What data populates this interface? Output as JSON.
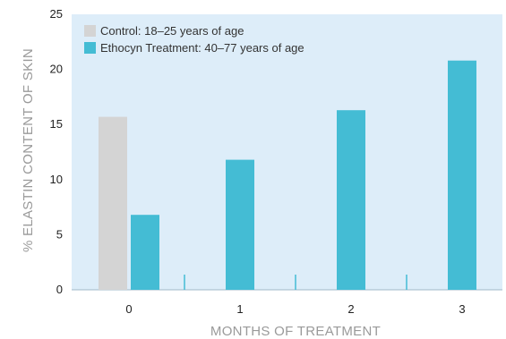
{
  "chart_data": {
    "type": "bar",
    "categories": [
      "0",
      "1",
      "2",
      "3"
    ],
    "series": [
      {
        "name": "Control: 18–25 years of age",
        "values": [
          15.7,
          null,
          null,
          null
        ],
        "color": "#d4d4d4"
      },
      {
        "name": "Ethocyn Treatment: 40–77 years of age",
        "values": [
          6.8,
          11.8,
          16.3,
          20.8
        ],
        "color": "#44bcd4"
      }
    ],
    "xlabel": "MONTHS OF TREATMENT",
    "ylabel": "% ELASTIN CONTENT OF SKIN",
    "ylim": [
      0,
      25
    ],
    "yticks": [
      "0",
      "5",
      "10",
      "15",
      "20",
      "25"
    ],
    "legend_position": "top-left",
    "background_color": "#ddedf9",
    "grid": false
  }
}
